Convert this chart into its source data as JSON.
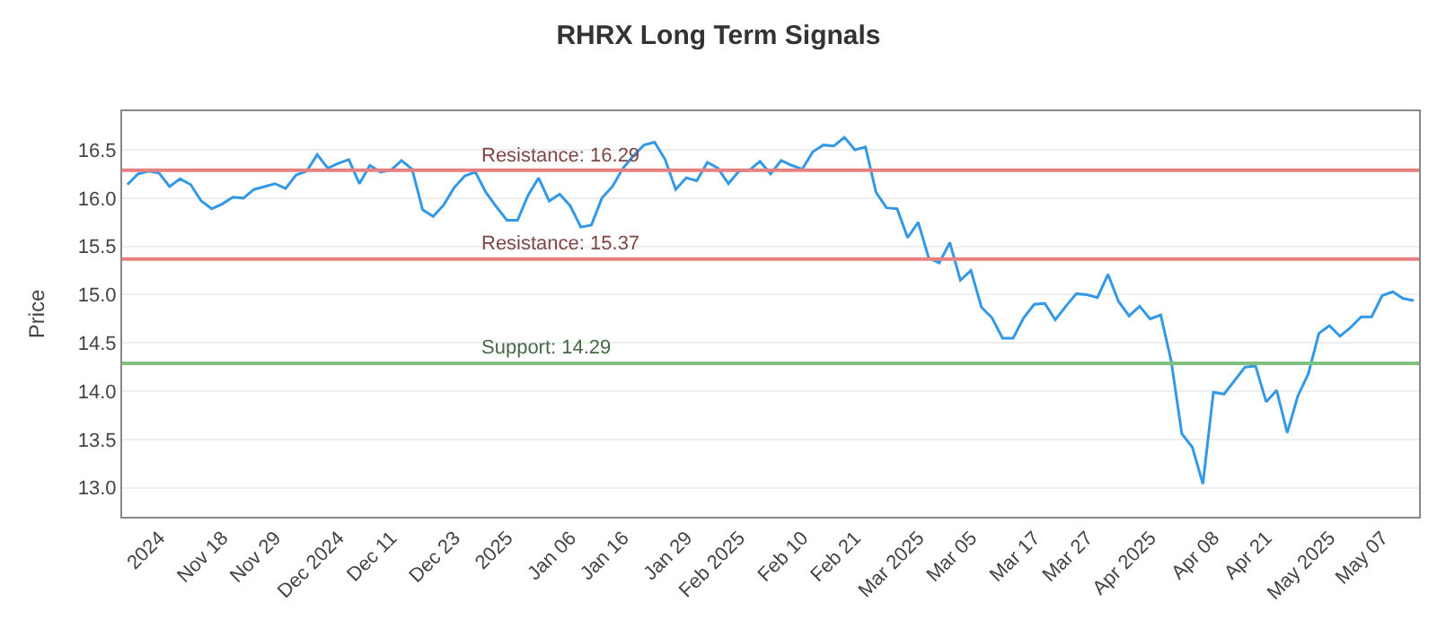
{
  "chart_data": {
    "type": "line",
    "title": "RHRX Long Term Signals",
    "ylabel": "Price",
    "categories": [
      null,
      null,
      null,
      "2024",
      null,
      null,
      null,
      null,
      null,
      "Nov 18",
      null,
      null,
      null,
      null,
      "Nov 29",
      null,
      null,
      null,
      null,
      null,
      "Dec 2024",
      null,
      null,
      null,
      null,
      "Dec 11",
      null,
      null,
      null,
      null,
      null,
      "Dec 23",
      null,
      null,
      null,
      null,
      "2025",
      null,
      null,
      null,
      null,
      null,
      "Jan 06",
      null,
      null,
      null,
      null,
      "Jan 16",
      null,
      null,
      null,
      null,
      null,
      "Jan 29",
      null,
      null,
      null,
      null,
      "Feb 2025",
      null,
      null,
      null,
      null,
      null,
      "Feb 10",
      null,
      null,
      null,
      null,
      "Feb 21",
      null,
      null,
      null,
      null,
      null,
      "Mar 2025",
      null,
      null,
      null,
      null,
      "Mar 05",
      null,
      null,
      null,
      null,
      null,
      "Mar 17",
      null,
      null,
      null,
      null,
      "Mar 27",
      null,
      null,
      null,
      null,
      null,
      "Apr 2025",
      null,
      null,
      null,
      null,
      null,
      "Apr 08",
      null,
      null,
      null,
      null,
      "Apr 21",
      null,
      null,
      null,
      null,
      null,
      "May 2025",
      null,
      null,
      null,
      null,
      "May 07",
      null,
      null,
      null
    ],
    "series": [
      {
        "color": "#3399e6",
        "values": [
          16.14,
          16.25,
          16.28,
          16.26,
          16.12,
          16.2,
          16.14,
          15.97,
          15.89,
          15.94,
          16.01,
          16.0,
          16.09,
          16.12,
          16.15,
          16.1,
          16.24,
          16.28,
          16.45,
          16.31,
          16.36,
          16.4,
          16.15,
          16.34,
          16.27,
          16.29,
          16.39,
          16.3,
          15.88,
          15.81,
          15.93,
          16.11,
          16.23,
          16.27,
          16.06,
          15.91,
          15.77,
          15.77,
          16.03,
          16.21,
          15.97,
          16.04,
          15.92,
          15.7,
          15.72,
          16.0,
          16.12,
          16.31,
          16.44,
          16.55,
          16.58,
          16.4,
          16.09,
          16.21,
          16.18,
          16.37,
          16.31,
          16.15,
          16.28,
          16.29,
          16.38,
          16.25,
          16.39,
          16.34,
          16.3,
          16.48,
          16.55,
          16.54,
          16.63,
          16.5,
          16.53,
          16.06,
          15.9,
          15.89,
          15.59,
          15.75,
          15.38,
          15.33,
          15.54,
          15.15,
          15.25,
          14.87,
          14.76,
          14.55,
          14.55,
          14.76,
          14.9,
          14.91,
          14.74,
          14.88,
          15.01,
          15.0,
          14.97,
          15.21,
          14.93,
          14.78,
          14.88,
          14.75,
          14.79,
          14.31,
          13.56,
          13.42,
          13.04,
          13.99,
          13.97,
          14.11,
          14.25,
          14.26,
          13.89,
          14.01,
          13.57,
          13.95,
          14.18,
          14.6,
          14.68,
          14.57,
          14.66,
          14.77,
          14.77,
          14.99,
          15.03,
          14.96,
          14.94
        ]
      }
    ],
    "ylim": [
      12.7,
      16.9
    ],
    "yticks": [
      {
        "value": 13,
        "label": "13.0"
      },
      {
        "value": 13.5,
        "label": "13.5"
      },
      {
        "value": 14,
        "label": "14.0"
      },
      {
        "value": 14.5,
        "label": "14.5"
      },
      {
        "value": 15,
        "label": "15.0"
      },
      {
        "value": 15.5,
        "label": "15.5"
      },
      {
        "value": 16,
        "label": "16.0"
      },
      {
        "value": 16.5,
        "label": "16.5"
      }
    ],
    "ref_lines": [
      {
        "axis": "y",
        "value": 16.29,
        "label": "Resistance: 16.29",
        "color": "#e88080"
      },
      {
        "axis": "y",
        "value": 15.37,
        "label": "Resistance: 15.37",
        "color": "#e88080"
      },
      {
        "axis": "y",
        "value": 14.29,
        "label": "Support: 14.29",
        "color": "#80c080"
      }
    ],
    "grid": "y",
    "marker": "none",
    "line_style": "solid"
  }
}
